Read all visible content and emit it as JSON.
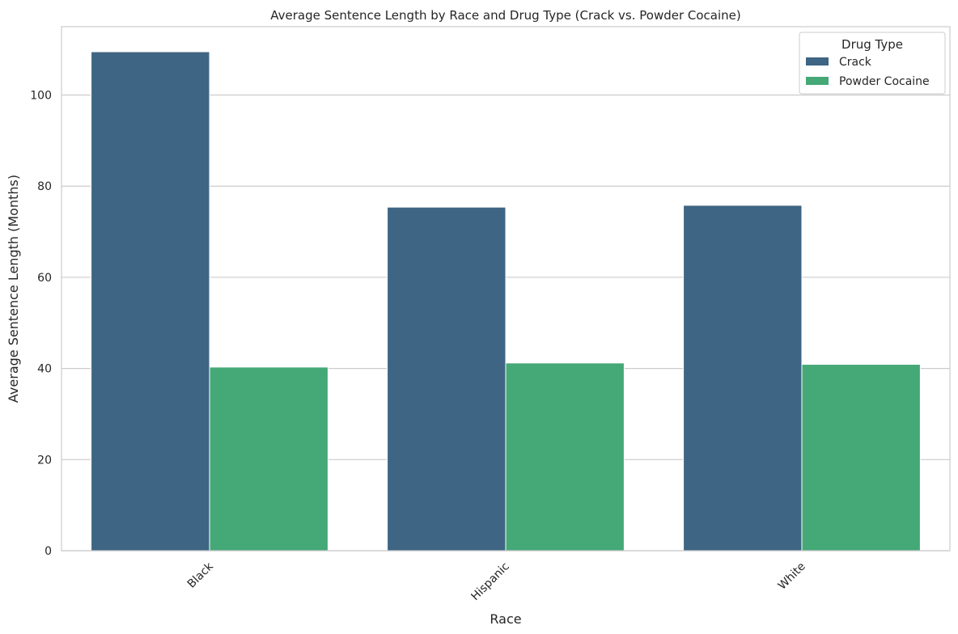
{
  "chart_data": {
    "type": "bar",
    "title": "Average Sentence Length by Race and Drug Type (Crack vs. Powder Cocaine)",
    "xlabel": "Race",
    "ylabel": "Average Sentence Length (Months)",
    "categories": [
      "Black",
      "Hispanic",
      "White"
    ],
    "series": [
      {
        "name": "Crack",
        "color": "#3e6583",
        "values": [
          109.5,
          75.4,
          75.8
        ]
      },
      {
        "name": "Powder Cocaine",
        "color": "#45a877",
        "values": [
          40.3,
          41.2,
          40.9
        ]
      }
    ],
    "ylim": [
      0,
      115
    ],
    "yticks": [
      0,
      20,
      40,
      60,
      80,
      100
    ],
    "grid": "horizontal",
    "legend": {
      "title": "Drug Type",
      "placement": "top-right"
    },
    "xtick_rotation": 45
  }
}
